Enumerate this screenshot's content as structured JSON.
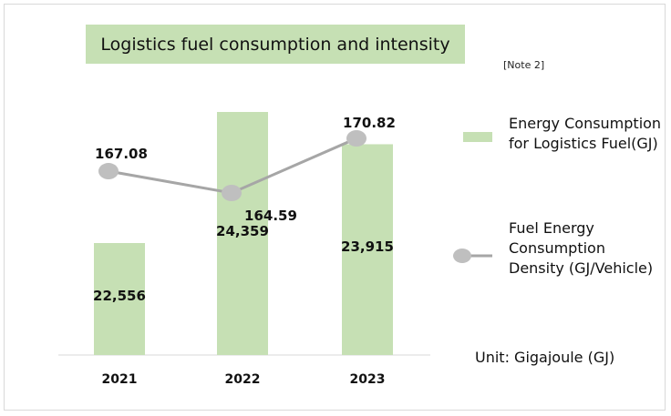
{
  "chart_data": {
    "type": "bar",
    "title": "Logistics fuel consumption and intensity",
    "note": "[Note 2]",
    "categories": [
      "2021",
      "2022",
      "2023"
    ],
    "series": [
      {
        "name": "Energy Consumption for Logistics Fuel(GJ)",
        "type": "bar",
        "color": "#c6e0b4",
        "values": [
          22556,
          24359,
          23915
        ],
        "labels": [
          "22,556",
          "24,359",
          "23,915"
        ]
      },
      {
        "name": "Fuel Energy Consumption Density (GJ/Vehicle)",
        "type": "line",
        "color": "#a6a6a6",
        "values": [
          167.08,
          164.59,
          170.82
        ],
        "labels": [
          "167.08",
          "164.59",
          "170.82"
        ]
      }
    ],
    "unit": "Unit: Gigajoule (GJ)"
  }
}
